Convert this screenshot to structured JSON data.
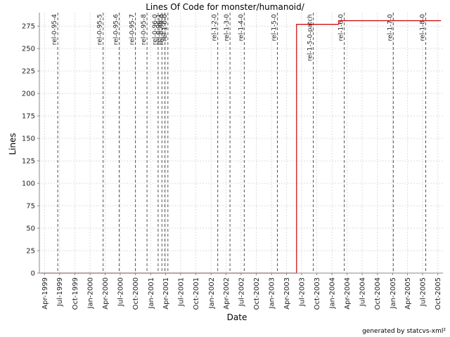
{
  "chart_data": {
    "type": "line",
    "title": "Lines Of Code for monster/humanoid/",
    "xlabel": "Date",
    "ylabel": "Lines",
    "ylim": [
      0,
      290
    ],
    "yticks": [
      0,
      25,
      50,
      75,
      100,
      125,
      150,
      175,
      200,
      225,
      250,
      275
    ],
    "xlim": [
      "1999-03-01",
      "2005-11-01"
    ],
    "xticks": [
      {
        "date": "1999-04-01",
        "label": "Apr-1999"
      },
      {
        "date": "1999-07-01",
        "label": "Jul-1999"
      },
      {
        "date": "1999-10-01",
        "label": "Oct-1999"
      },
      {
        "date": "2000-01-01",
        "label": "Jan-2000"
      },
      {
        "date": "2000-04-01",
        "label": "Apr-2000"
      },
      {
        "date": "2000-07-01",
        "label": "Jul-2000"
      },
      {
        "date": "2000-10-01",
        "label": "Oct-2000"
      },
      {
        "date": "2001-01-01",
        "label": "Jan-2001"
      },
      {
        "date": "2001-04-01",
        "label": "Apr-2001"
      },
      {
        "date": "2001-07-01",
        "label": "Jul-2001"
      },
      {
        "date": "2001-10-01",
        "label": "Oct-2001"
      },
      {
        "date": "2002-01-01",
        "label": "Jan-2002"
      },
      {
        "date": "2002-04-01",
        "label": "Apr-2002"
      },
      {
        "date": "2002-07-01",
        "label": "Jul-2002"
      },
      {
        "date": "2002-10-01",
        "label": "Oct-2002"
      },
      {
        "date": "2003-01-01",
        "label": "Jan-2003"
      },
      {
        "date": "2003-04-01",
        "label": "Apr-2003"
      },
      {
        "date": "2003-07-01",
        "label": "Jul-2003"
      },
      {
        "date": "2003-10-01",
        "label": "Oct-2003"
      },
      {
        "date": "2004-01-01",
        "label": "Jan-2004"
      },
      {
        "date": "2004-04-01",
        "label": "Apr-2004"
      },
      {
        "date": "2004-07-01",
        "label": "Jul-2004"
      },
      {
        "date": "2004-10-01",
        "label": "Oct-2004"
      },
      {
        "date": "2005-01-01",
        "label": "Jan-2005"
      },
      {
        "date": "2005-04-01",
        "label": "Apr-2005"
      },
      {
        "date": "2005-07-01",
        "label": "Jul-2005"
      },
      {
        "date": "2005-10-01",
        "label": "Oct-2005"
      }
    ],
    "grid": true,
    "line_color": "#cc0000",
    "tag_line_color": "#555555",
    "series": [
      {
        "x": [
          "1999-03-10",
          "2003-06-01",
          "2003-06-01",
          "2004-02-10",
          "2004-02-10",
          "2005-10-20"
        ],
        "y": [
          0,
          0,
          277,
          277,
          281,
          281
        ]
      }
    ],
    "tags": [
      {
        "name": "rel-0-95-4",
        "date": "1999-06-20"
      },
      {
        "name": "rel-0-95-5",
        "date": "2000-03-20"
      },
      {
        "name": "rel-0-95-6",
        "date": "2000-06-25"
      },
      {
        "name": "rel-0-95-7",
        "date": "2000-10-01"
      },
      {
        "name": "rel-0-95-8",
        "date": "2000-12-10"
      },
      {
        "name": "rel-0-96-0",
        "date": "2001-02-15"
      },
      {
        "name": "rel-0-96-1",
        "date": "2001-03-10"
      },
      {
        "name": "rel-0-99-0",
        "date": "2001-03-28"
      },
      {
        "name": "rel-1-0-0",
        "date": "2001-04-15"
      },
      {
        "name": "rel-1-2-0",
        "date": "2002-02-10"
      },
      {
        "name": "rel-1-3-0",
        "date": "2002-04-25"
      },
      {
        "name": "rel-1-4-0",
        "date": "2002-07-20"
      },
      {
        "name": "rel-1-5-0",
        "date": "2003-02-05"
      },
      {
        "name": "rel-1-5-0-patch",
        "date": "2003-09-10"
      },
      {
        "name": "rel-1-6-0",
        "date": "2004-03-15"
      },
      {
        "name": "rel-1-7-0",
        "date": "2005-01-05"
      },
      {
        "name": "rel-1-8-0",
        "date": "2005-07-20"
      }
    ]
  },
  "footer": "generated by statcvs-xml²"
}
